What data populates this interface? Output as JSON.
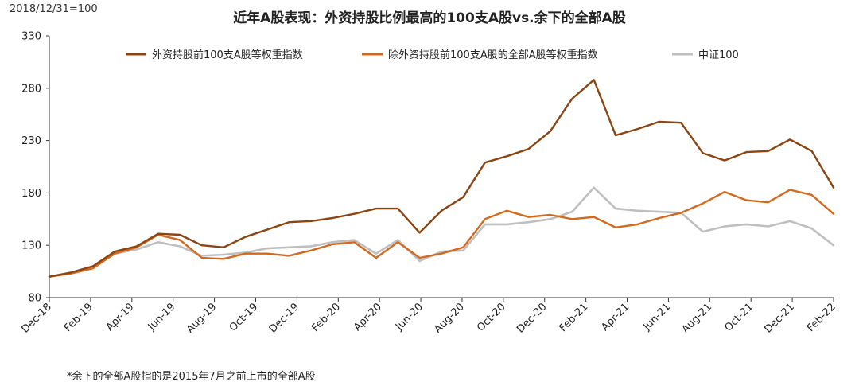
{
  "header": {
    "base_note": "2018/12/31=100",
    "title": "近年A股表现：外资持股比例最高的100支A股vs.余下的全部A股"
  },
  "footnote": "*余下的全部A股指的是2015年7月之前上市的全部A股",
  "chart_data": {
    "type": "line",
    "ylim": [
      80,
      330
    ],
    "yticks": [
      80,
      130,
      180,
      230,
      280,
      330
    ],
    "xticks": [
      "Dec-18",
      "Feb-19",
      "Apr-19",
      "Jun-19",
      "Aug-19",
      "Oct-19",
      "Dec-19",
      "Feb-20",
      "Apr-20",
      "Jun-20",
      "Aug-20",
      "Oct-20",
      "Dec-20",
      "Feb-21",
      "Apr-21",
      "Jun-21",
      "Aug-21",
      "Oct-21",
      "Dec-21",
      "Feb-22"
    ],
    "legend_position": "top",
    "series": [
      {
        "name": "外资持股前100支A股等权重指数",
        "color": "#8B4513",
        "values": [
          100,
          104,
          110,
          124,
          129,
          141,
          140,
          130,
          128,
          138,
          145,
          152,
          153,
          156,
          160,
          165,
          165,
          142,
          163,
          176,
          209,
          215,
          222,
          239,
          270,
          288,
          235,
          241,
          248,
          247,
          218,
          211,
          219,
          220,
          231,
          220,
          185
        ]
      },
      {
        "name": "除外资持股前100支A股的全部A股等权重指数",
        "color": "#D2691E",
        "values": [
          100,
          103,
          108,
          122,
          128,
          140,
          135,
          118,
          117,
          122,
          122,
          120,
          125,
          131,
          133,
          118,
          133,
          118,
          122,
          128,
          155,
          163,
          157,
          159,
          155,
          157,
          147,
          150,
          156,
          161,
          170,
          181,
          173,
          171,
          183,
          178,
          160
        ]
      },
      {
        "name": "中证100",
        "color": "#BFBFBF",
        "values": [
          100,
          104,
          110,
          122,
          126,
          133,
          129,
          120,
          121,
          123,
          127,
          128,
          129,
          133,
          135,
          122,
          135,
          115,
          124,
          125,
          150,
          150,
          152,
          155,
          162,
          185,
          165,
          163,
          162,
          161,
          143,
          148,
          150,
          148,
          153,
          146,
          130
        ]
      }
    ]
  }
}
